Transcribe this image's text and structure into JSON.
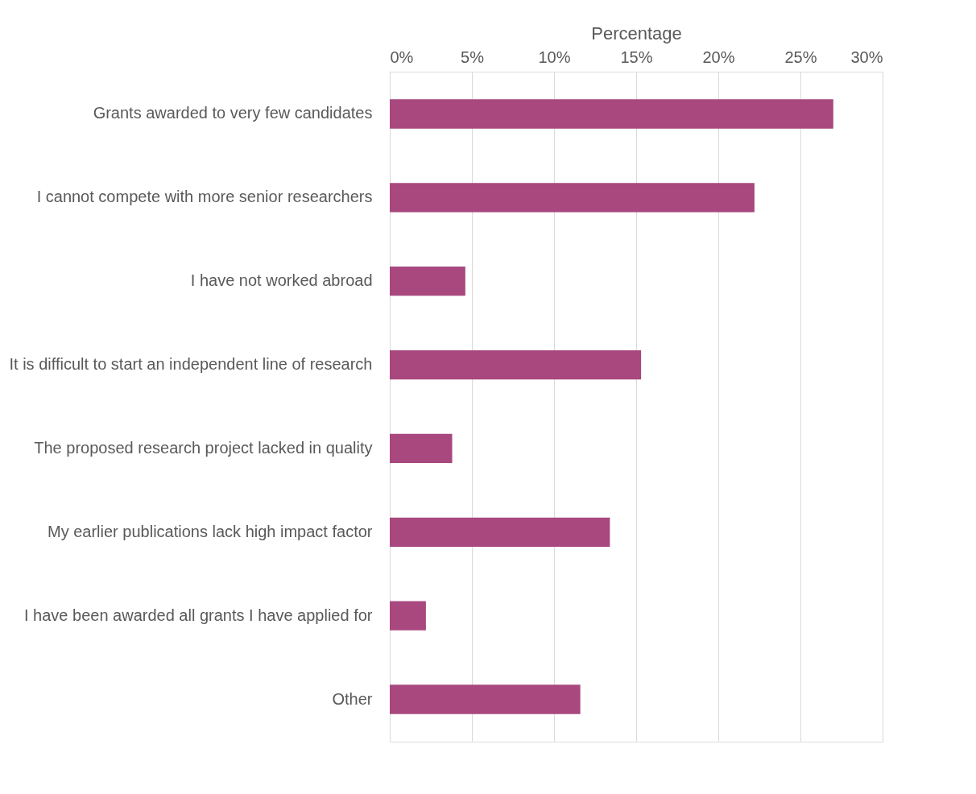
{
  "chart_data": {
    "type": "bar",
    "orientation": "horizontal",
    "xlabel": "Percentage",
    "categories": [
      "Grants awarded to very few candidates",
      "I cannot compete with more senior researchers",
      "I have not worked abroad",
      "It is difficult to start an independent line of research",
      "The proposed research project lacked in quality",
      "My earlier publications lack high impact factor",
      "I have been awarded all grants I have applied for",
      "Other"
    ],
    "values": [
      27,
      22.2,
      4.6,
      15.3,
      3.8,
      13.4,
      2.2,
      11.6
    ],
    "color": "#a8487e",
    "xlim": [
      0,
      30
    ],
    "xticks": [
      {
        "value": 0,
        "label": "0%"
      },
      {
        "value": 5,
        "label": "5%"
      },
      {
        "value": 10,
        "label": "10%"
      },
      {
        "value": 15,
        "label": "15%"
      },
      {
        "value": 20,
        "label": "20%"
      },
      {
        "value": 25,
        "label": "25%"
      },
      {
        "value": 30,
        "label": "30%"
      }
    ],
    "grid": "x"
  }
}
